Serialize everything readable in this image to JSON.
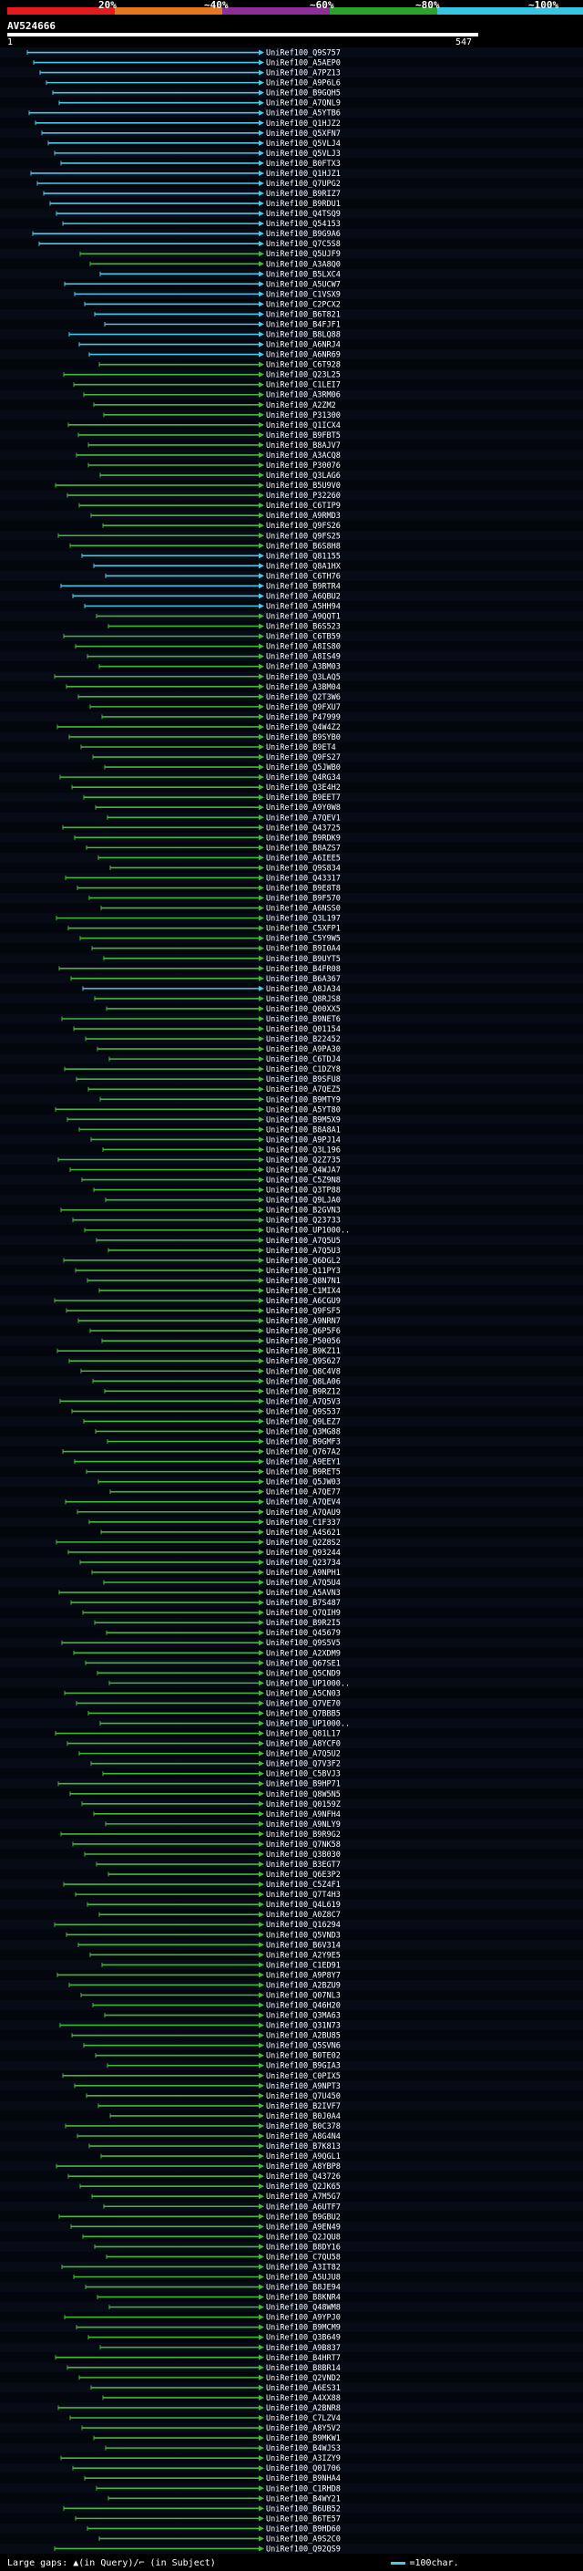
{
  "header": {
    "pct_labels": [
      "20%",
      "~40%",
      "~60%",
      "~80%",
      "~100%"
    ],
    "title": "AV524666",
    "scale_start": "1",
    "scale_end": "547"
  },
  "legend_colors": [
    "#e41a1c",
    "#e8761e",
    "#8f2e99",
    "#29a329",
    "#36c6e5"
  ],
  "hits": [
    "UniRef100_Q9S757",
    "UniRef100_A5AEP0",
    "UniRef100_A7PZ13",
    "UniRef100_A9P6L6",
    "UniRef100_B9GQH5",
    "UniRef100_A7QNL9",
    "UniRef100_A5YTB6",
    "UniRef100_Q1HJZ2",
    "UniRef100_Q5XFN7",
    "UniRef100_Q5VLJ4",
    "UniRef100_Q5VLJ3",
    "UniRef100_B0FTX3",
    "UniRef100_Q1HJZ1",
    "UniRef100_Q7UPG2",
    "UniRef100_B9RIZ7",
    "UniRef100_B9RDU1",
    "UniRef100_Q4TSQ9",
    "UniRef100_Q54153",
    "UniRef100_B9G9A6",
    "UniRef100_Q7C5S8",
    "UniRef100_Q5UJF9",
    "UniRef100_A3A8Q0",
    "UniRef100_B5LXC4",
    "UniRef100_A5UCW7",
    "UniRef100_C1VSX9",
    "UniRef100_C2PCX2",
    "UniRef100_B6T821",
    "UniRef100_B4FJF1",
    "UniRef100_B8LQ88",
    "UniRef100_A6NRJ4",
    "UniRef100_A6NR69",
    "UniRef100_C6T928",
    "UniRef100_Q23L25",
    "UniRef100_C1LEI7",
    "UniRef100_A3RM06",
    "UniRef100_A2ZM2",
    "UniRef100_P31300",
    "UniRef100_Q1ICX4",
    "UniRef100_B9FBT5",
    "UniRef100_B8AJV7",
    "UniRef100_A3ACQ8",
    "UniRef100_P30076",
    "UniRef100_Q3LAG6",
    "UniRef100_B5U9V0",
    "UniRef100_P32260",
    "UniRef100_C6TIP9",
    "UniRef100_A9RMD3",
    "UniRef100_Q9FS26",
    "UniRef100_Q9FS25",
    "UniRef100_B6S8H8",
    "UniRef100_Q81155",
    "UniRef100_Q8A1HX",
    "UniRef100_C6TH76",
    "UniRef100_B9RTR4",
    "UniRef100_A6QBU2",
    "UniRef100_A5HH94",
    "UniRef100_A9QQT1",
    "UniRef100_B6S523",
    "UniRef100_C6TB59",
    "UniRef100_A8IS80",
    "UniRef100_A8IS49",
    "UniRef100_A3BM03",
    "UniRef100_Q3LAQ5",
    "UniRef100_A3BM04",
    "UniRef100_Q2T3W6",
    "UniRef100_Q9FXU7",
    "UniRef100_P47999",
    "UniRef100_Q4W4Z2",
    "UniRef100_B9SYB0",
    "UniRef100_B9ET4",
    "UniRef100_Q9FS27",
    "UniRef100_Q5JWB0",
    "UniRef100_Q4RG34",
    "UniRef100_Q3E4H2",
    "UniRef100_B9EET7",
    "UniRef100_A9Y0W8",
    "UniRef100_A7QEV1",
    "UniRef100_Q43725",
    "UniRef100_B9RDK9",
    "UniRef100_B8AZS7",
    "UniRef100_A6IEE5",
    "UniRef100_Q9S834",
    "UniRef100_Q43317",
    "UniRef100_B9E8T8",
    "UniRef100_B9F570",
    "UniRef100_A6NSS0",
    "UniRef100_Q3L197",
    "UniRef100_C5XFP1",
    "UniRef100_C5Y9W5",
    "UniRef100_B9I0A4",
    "UniRef100_B9UYT5",
    "UniRef100_B4FR08",
    "UniRef100_B6A367",
    "UniRef100_A8JA34",
    "UniRef100_Q8RJS8",
    "UniRef100_Q00XX5",
    "UniRef100_B9NET6",
    "UniRef100_Q01154",
    "UniRef100_B22452",
    "UniRef100_A9PA30",
    "UniRef100_C6TDJ4",
    "UniRef100_C1DZY8",
    "UniRef100_B9SFU8",
    "UniRef100_A7QEZ5",
    "UniRef100_B9MTY9",
    "UniRef100_A5YT80",
    "UniRef100_B9M5X9",
    "UniRef100_B8A8A1",
    "UniRef100_A9PJ14",
    "UniRef100_Q3L196",
    "UniRef100_Q2Z735",
    "UniRef100_Q4WJA7",
    "UniRef100_C5Z9N8",
    "UniRef100_Q3TP88",
    "UniRef100_Q9LJA0",
    "UniRef100_B2GVN3",
    "UniRef100_Q23733",
    "UniRef100_UP1000..",
    "UniRef100_A7Q5U5",
    "UniRef100_A7Q5U3",
    "UniRef100_Q6DGL2",
    "UniRef100_Q11PY3",
    "UniRef100_Q8N7N1",
    "UniRef100_C1MIX4",
    "UniRef100_A6CGU9",
    "UniRef100_Q9FSF5",
    "UniRef100_A9NRN7",
    "UniRef100_Q6P5F6",
    "UniRef100_P50056",
    "UniRef100_B9KZ11",
    "UniRef100_Q9S627",
    "UniRef100_Q8C4V8",
    "UniRef100_Q8LA06",
    "UniRef100_B9RZ12",
    "UniRef100_A7Q5V3",
    "UniRef100_Q9S537",
    "UniRef100_Q9LEZ7",
    "UniRef100_Q3MG88",
    "UniRef100_B9GMF3",
    "UniRef100_Q767A2",
    "UniRef100_A9EEY1",
    "UniRef100_B9RET5",
    "UniRef100_Q5JW03",
    "UniRef100_A7QE77",
    "UniRef100_A7QEV4",
    "UniRef100_A7QAU9",
    "UniRef100_C1F337",
    "UniRef100_A4S621",
    "UniRef100_Q2Z8S2",
    "UniRef100_Q93244",
    "UniRef100_Q23734",
    "UniRef100_A9NPH1",
    "UniRef100_A7Q5U4",
    "UniRef100_A5AVN3",
    "UniRef100_B7S487",
    "UniRef100_Q7QIH9",
    "UniRef100_B9R2I5",
    "UniRef100_Q45679",
    "UniRef100_Q9S5V5",
    "UniRef100_A2XDM9",
    "UniRef100_Q67SE1",
    "UniRef100_Q5CND9",
    "UniRef100_UP1000..",
    "UniRef100_A5CN03",
    "UniRef100_Q7VE70",
    "UniRef100_Q7BBB5",
    "UniRef100_UP1000..",
    "UniRef100_Q81L17",
    "UniRef100_A8YCF0",
    "UniRef100_A7Q5U2",
    "UniRef100_Q7V3F2",
    "UniRef100_C5BVJ3",
    "UniRef100_B9HP71",
    "UniRef100_Q8W5N5",
    "UniRef100_Q0159Z",
    "UniRef100_A9NFH4",
    "UniRef100_A9NLY9",
    "UniRef100_B9R9G2",
    "UniRef100_Q7NK58",
    "UniRef100_Q3B030",
    "UniRef100_B3EGT7",
    "UniRef100_Q6E3P2",
    "UniRef100_C5Z4F1",
    "UniRef100_Q7T4H3",
    "UniRef100_Q4L619",
    "UniRef100_A0Z8C7",
    "UniRef100_Q16294",
    "UniRef100_Q5VND3",
    "UniRef100_B6V314",
    "UniRef100_A2Y9E5",
    "UniRef100_C1ED91",
    "UniRef100_A9P8Y7",
    "UniRef100_A2BZU9",
    "UniRef100_Q07NL3",
    "UniRef100_Q46H20",
    "UniRef100_Q3MA63",
    "UniRef100_Q31N73",
    "UniRef100_A2BU85",
    "UniRef100_Q5SVN6",
    "UniRef100_B0TE02",
    "UniRef100_B9GIA3",
    "UniRef100_C0PIX5",
    "UniRef100_A9NPT3",
    "UniRef100_Q7U450",
    "UniRef100_B2IVF7",
    "UniRef100_B0J0A4",
    "UniRef100_B0C378",
    "UniRef100_A8G4N4",
    "UniRef100_B7K813",
    "UniRef100_A9QGL1",
    "UniRef100_A8YBP8",
    "UniRef100_Q43726",
    "UniRef100_Q2JK65",
    "UniRef100_A7M5G7",
    "UniRef100_A6UTF7",
    "UniRef100_B9GBU2",
    "UniRef100_A9EN49",
    "UniRef100_Q2JQU8",
    "UniRef100_B8DY16",
    "UniRef100_C7QU58",
    "UniRef100_A3IT82",
    "UniRef100_A5UJU8",
    "UniRef100_B8JE94",
    "UniRef100_B8KNR4",
    "UniRef100_Q48WM8",
    "UniRef100_A9YPJ0",
    "UniRef100_B9MCM9",
    "UniRef100_Q3B649",
    "UniRef100_A9B837",
    "UniRef100_B4HRT7",
    "UniRef100_B8BR14",
    "UniRef100_Q2VND2",
    "UniRef100_A6ES31",
    "UniRef100_A4XX88",
    "UniRef100_A2BNR8",
    "UniRef100_C7LZV4",
    "UniRef100_A8Y5V2",
    "UniRef100_B9MKW1",
    "UniRef100_B4WJS3",
    "UniRef100_A3IZY9",
    "UniRef100_Q01706",
    "UniRef100_B9NHA4",
    "UniRef100_C1RHD8",
    "UniRef100_B4WY21",
    "UniRef100_B6UB52",
    "UniRef100_B6TE57",
    "UniRef100_B9HD60",
    "UniRef100_A9S2C0",
    "UniRef100_Q92QS9"
  ],
  "footer": {
    "text": "Large gaps: ▲(in Query)/⌐ (in Subject)",
    "scale_note": "=100char."
  }
}
